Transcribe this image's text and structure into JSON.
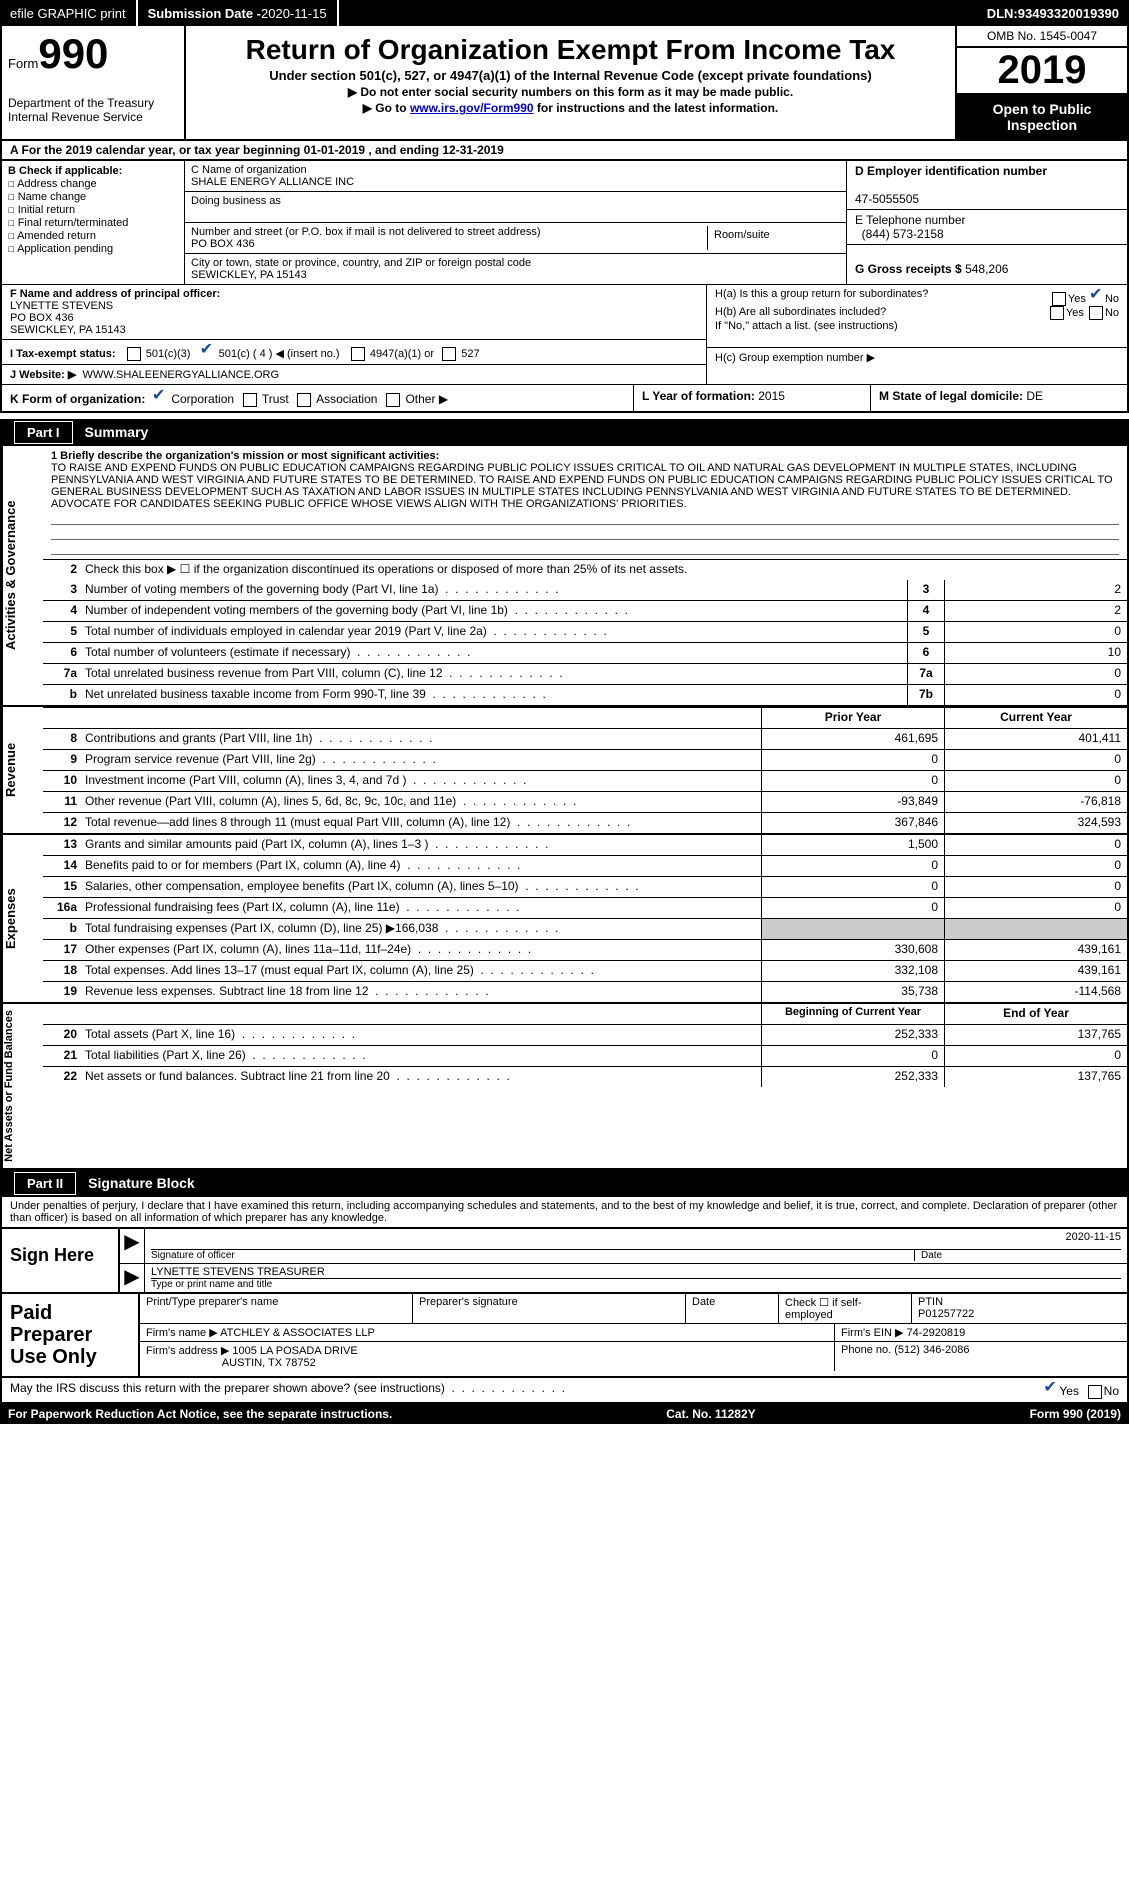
{
  "topbar": {
    "efile": "efile GRAPHIC print",
    "subdate_label": "Submission Date - ",
    "subdate": "2020-11-15",
    "dln_label": "DLN: ",
    "dln": "93493320019390"
  },
  "header": {
    "form_word": "Form",
    "form_num": "990",
    "dept1": "Department of the Treasury",
    "dept2": "Internal Revenue Service",
    "title": "Return of Organization Exempt From Income Tax",
    "subtitle": "Under section 501(c), 527, or 4947(a)(1) of the Internal Revenue Code (except private foundations)",
    "note1": "▶ Do not enter social security numbers on this form as it may be made public.",
    "note2_pre": "▶ Go to ",
    "note2_link": "www.irs.gov/Form990",
    "note2_post": " for instructions and the latest information.",
    "omb": "OMB No. 1545-0047",
    "year": "2019",
    "open": "Open to Public Inspection"
  },
  "row_a": {
    "text": "A  For the 2019 calendar year, or tax year beginning 01-01-2019    , and ending 12-31-2019"
  },
  "b": {
    "title": "B Check if applicable:",
    "items": [
      "Address change",
      "Name change",
      "Initial return",
      "Final return/terminated",
      "Amended return",
      "Application pending"
    ]
  },
  "c": {
    "name_label": "C Name of organization",
    "name": "SHALE ENERGY ALLIANCE INC",
    "dba_label": "Doing business as",
    "dba": "",
    "street_label": "Number and street (or P.O. box if mail is not delivered to street address)",
    "street": "PO BOX 436",
    "room_label": "Room/suite",
    "city_label": "City or town, state or province, country, and ZIP or foreign postal code",
    "city": "SEWICKLEY, PA  15143"
  },
  "d": {
    "ein_label": "D Employer identification number",
    "ein": "47-5055505",
    "phone_label": "E Telephone number",
    "phone": "(844) 573-2158",
    "gross_label": "G Gross receipts $",
    "gross": "548,206"
  },
  "f": {
    "label": "F  Name and address of principal officer:",
    "name": "LYNETTE STEVENS",
    "street": "PO BOX 436",
    "city": "SEWICKLEY, PA  15143"
  },
  "i": {
    "label": "I  Tax-exempt status:",
    "opt1": "501(c)(3)",
    "opt2": "501(c) ( 4 ) ◀ (insert no.)",
    "opt3": "4947(a)(1) or",
    "opt4": "527"
  },
  "j": {
    "label": "J  Website: ▶",
    "value": "WWW.SHALEENERGYALLIANCE.ORG"
  },
  "h": {
    "ha_label": "H(a)  Is this a group return for subordinates?",
    "hb_label": "H(b)  Are all subordinates included?",
    "hb_note": "If \"No,\" attach a list. (see instructions)",
    "hc_label": "H(c)  Group exemption number ▶"
  },
  "k": {
    "label": "K Form of organization:",
    "opts": [
      "Corporation",
      "Trust",
      "Association",
      "Other ▶"
    ],
    "l_label": "L Year of formation: ",
    "l_val": "2015",
    "m_label": "M State of legal domicile: ",
    "m_val": "DE"
  },
  "part1": {
    "num": "Part I",
    "title": "Summary",
    "vtab_ag": "Activities & Governance",
    "vtab_rev": "Revenue",
    "vtab_exp": "Expenses",
    "vtab_net": "Net Assets or Fund Balances",
    "line1_intro": "1   Briefly describe the organization's mission or most significant activities:",
    "mission": "TO RAISE AND EXPEND FUNDS ON PUBLIC EDUCATION CAMPAIGNS REGARDING PUBLIC POLICY ISSUES CRITICAL TO OIL AND NATURAL GAS DEVELOPMENT IN MULTIPLE STATES, INCLUDING PENNSYLVANIA AND WEST VIRGINIA AND FUTURE STATES TO BE DETERMINED. TO RAISE AND EXPEND FUNDS ON PUBLIC EDUCATION CAMPAIGNS REGARDING PUBLIC POLICY ISSUES CRITICAL TO GENERAL BUSINESS DEVELOPMENT SUCH AS TAXATION AND LABOR ISSUES IN MULTIPLE STATES INCLUDING PENNSYLVANIA AND WEST VIRGINIA AND FUTURE STATES TO BE DETERMINED. ADVOCATE FOR CANDIDATES SEEKING PUBLIC OFFICE WHOSE VIEWS ALIGN WITH THE ORGANIZATIONS' PRIORITIES.",
    "line2": "Check this box ▶ ☐  if the organization discontinued its operations or disposed of more than 25% of its net assets.",
    "rows_ag": [
      {
        "n": "3",
        "d": "Number of voting members of the governing body (Part VI, line 1a)",
        "b": "3",
        "v": "2"
      },
      {
        "n": "4",
        "d": "Number of independent voting members of the governing body (Part VI, line 1b)",
        "b": "4",
        "v": "2"
      },
      {
        "n": "5",
        "d": "Total number of individuals employed in calendar year 2019 (Part V, line 2a)",
        "b": "5",
        "v": "0"
      },
      {
        "n": "6",
        "d": "Total number of volunteers (estimate if necessary)",
        "b": "6",
        "v": "10"
      },
      {
        "n": "7a",
        "d": "Total unrelated business revenue from Part VIII, column (C), line 12",
        "b": "7a",
        "v": "0"
      },
      {
        "n": "b",
        "d": "Net unrelated business taxable income from Form 990-T, line 39",
        "b": "7b",
        "v": "0"
      }
    ],
    "yearhdr": {
      "prior": "Prior Year",
      "current": "Current Year"
    },
    "rows_rev": [
      {
        "n": "8",
        "d": "Contributions and grants (Part VIII, line 1h)",
        "p": "461,695",
        "c": "401,411"
      },
      {
        "n": "9",
        "d": "Program service revenue (Part VIII, line 2g)",
        "p": "0",
        "c": "0"
      },
      {
        "n": "10",
        "d": "Investment income (Part VIII, column (A), lines 3, 4, and 7d )",
        "p": "0",
        "c": "0"
      },
      {
        "n": "11",
        "d": "Other revenue (Part VIII, column (A), lines 5, 6d, 8c, 9c, 10c, and 11e)",
        "p": "-93,849",
        "c": "-76,818"
      },
      {
        "n": "12",
        "d": "Total revenue—add lines 8 through 11 (must equal Part VIII, column (A), line 12)",
        "p": "367,846",
        "c": "324,593"
      }
    ],
    "rows_exp": [
      {
        "n": "13",
        "d": "Grants and similar amounts paid (Part IX, column (A), lines 1–3 )",
        "p": "1,500",
        "c": "0"
      },
      {
        "n": "14",
        "d": "Benefits paid to or for members (Part IX, column (A), line 4)",
        "p": "0",
        "c": "0"
      },
      {
        "n": "15",
        "d": "Salaries, other compensation, employee benefits (Part IX, column (A), lines 5–10)",
        "p": "0",
        "c": "0"
      },
      {
        "n": "16a",
        "d": "Professional fundraising fees (Part IX, column (A), line 11e)",
        "p": "0",
        "c": "0"
      },
      {
        "n": "b",
        "d": "Total fundraising expenses (Part IX, column (D), line 25) ▶166,038",
        "p": "",
        "c": "",
        "grey": true
      },
      {
        "n": "17",
        "d": "Other expenses (Part IX, column (A), lines 11a–11d, 11f–24e)",
        "p": "330,608",
        "c": "439,161"
      },
      {
        "n": "18",
        "d": "Total expenses. Add lines 13–17 (must equal Part IX, column (A), line 25)",
        "p": "332,108",
        "c": "439,161"
      },
      {
        "n": "19",
        "d": "Revenue less expenses. Subtract line 18 from line 12",
        "p": "35,738",
        "c": "-114,568"
      }
    ],
    "nethdr": {
      "beg": "Beginning of Current Year",
      "end": "End of Year"
    },
    "rows_net": [
      {
        "n": "20",
        "d": "Total assets (Part X, line 16)",
        "p": "252,333",
        "c": "137,765"
      },
      {
        "n": "21",
        "d": "Total liabilities (Part X, line 26)",
        "p": "0",
        "c": "0"
      },
      {
        "n": "22",
        "d": "Net assets or fund balances. Subtract line 21 from line 20",
        "p": "252,333",
        "c": "137,765"
      }
    ]
  },
  "part2": {
    "num": "Part II",
    "title": "Signature Block",
    "perjury": "Under penalties of perjury, I declare that I have examined this return, including accompanying schedules and statements, and to the best of my knowledge and belief, it is true, correct, and complete. Declaration of preparer (other than officer) is based on all information of which preparer has any knowledge.",
    "sign_here": "Sign Here",
    "sig_of_officer": "Signature of officer",
    "date_label": "Date",
    "sig_date": "2020-11-15",
    "officer_name": "LYNETTE STEVENS  TREASURER",
    "type_name": "Type or print name and title",
    "paid": "Paid Preparer Use Only",
    "pt_name_label": "Print/Type preparer's name",
    "pt_sig_label": "Preparer's signature",
    "pt_date_label": "Date",
    "pt_check_label": "Check ☐ if self-employed",
    "ptin_label": "PTIN",
    "ptin": "P01257722",
    "firm_name_label": "Firm's name    ▶",
    "firm_name": "ATCHLEY & ASSOCIATES LLP",
    "firm_ein_label": "Firm's EIN ▶",
    "firm_ein": "74-2920819",
    "firm_addr_label": "Firm's address ▶",
    "firm_addr1": "1005 LA POSADA DRIVE",
    "firm_addr2": "AUSTIN, TX  78752",
    "phone_label": "Phone no.",
    "phone": "(512) 346-2086",
    "may_irs": "May the IRS discuss this return with the preparer shown above? (see instructions)"
  },
  "footer": {
    "left": "For Paperwork Reduction Act Notice, see the separate instructions.",
    "mid": "Cat. No. 11282Y",
    "right": "Form 990 (2019)"
  }
}
